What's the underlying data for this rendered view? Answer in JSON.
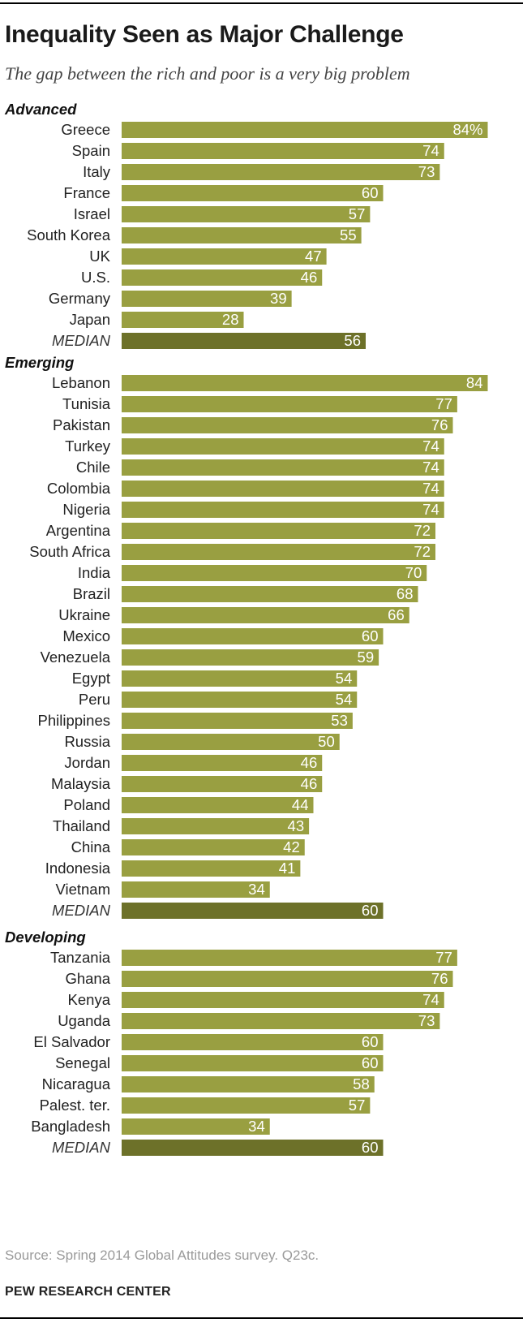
{
  "header": {
    "title": "Inequality Seen as Major Challenge",
    "subtitle": "The gap between the rich and poor is a very big problem"
  },
  "footer": {
    "source": "Source: Spring 2014 Global Attitudes survey. Q23c.",
    "credit": "PEW RESEARCH CENTER"
  },
  "colors": {
    "bar": "#999f41",
    "median_bar": "#6d7129",
    "value_text": "#ffffff"
  },
  "chart_data": {
    "type": "bar",
    "orientation": "horizontal",
    "xlim": [
      0,
      100
    ],
    "value_suffix_first": "%",
    "groups": [
      {
        "name": "Advanced",
        "rows": [
          {
            "label": "Greece",
            "value": 84
          },
          {
            "label": "Spain",
            "value": 74
          },
          {
            "label": "Italy",
            "value": 73
          },
          {
            "label": "France",
            "value": 60
          },
          {
            "label": "Israel",
            "value": 57
          },
          {
            "label": "South Korea",
            "value": 55
          },
          {
            "label": "UK",
            "value": 47
          },
          {
            "label": "U.S.",
            "value": 46
          },
          {
            "label": "Germany",
            "value": 39
          },
          {
            "label": "Japan",
            "value": 28
          },
          {
            "label": "MEDIAN",
            "value": 56,
            "median": true
          }
        ]
      },
      {
        "name": "Emerging",
        "rows": [
          {
            "label": "Lebanon",
            "value": 84
          },
          {
            "label": "Tunisia",
            "value": 77
          },
          {
            "label": "Pakistan",
            "value": 76
          },
          {
            "label": "Turkey",
            "value": 74
          },
          {
            "label": "Chile",
            "value": 74
          },
          {
            "label": "Colombia",
            "value": 74
          },
          {
            "label": "Nigeria",
            "value": 74
          },
          {
            "label": "Argentina",
            "value": 72
          },
          {
            "label": "South Africa",
            "value": 72
          },
          {
            "label": "India",
            "value": 70
          },
          {
            "label": "Brazil",
            "value": 68
          },
          {
            "label": "Ukraine",
            "value": 66
          },
          {
            "label": "Mexico",
            "value": 60
          },
          {
            "label": "Venezuela",
            "value": 59
          },
          {
            "label": "Egypt",
            "value": 54
          },
          {
            "label": "Peru",
            "value": 54
          },
          {
            "label": "Philippines",
            "value": 53
          },
          {
            "label": "Russia",
            "value": 50
          },
          {
            "label": "Jordan",
            "value": 46
          },
          {
            "label": "Malaysia",
            "value": 46
          },
          {
            "label": "Poland",
            "value": 44
          },
          {
            "label": "Thailand",
            "value": 43
          },
          {
            "label": "China",
            "value": 42
          },
          {
            "label": "Indonesia",
            "value": 41
          },
          {
            "label": "Vietnam",
            "value": 34
          },
          {
            "label": "MEDIAN",
            "value": 60,
            "median": true
          }
        ]
      },
      {
        "name": "Developing",
        "rows": [
          {
            "label": "Tanzania",
            "value": 77
          },
          {
            "label": "Ghana",
            "value": 76
          },
          {
            "label": "Kenya",
            "value": 74
          },
          {
            "label": "Uganda",
            "value": 73
          },
          {
            "label": "El Salvador",
            "value": 60
          },
          {
            "label": "Senegal",
            "value": 60
          },
          {
            "label": "Nicaragua",
            "value": 58
          },
          {
            "label": "Palest. ter.",
            "value": 57
          },
          {
            "label": "Bangladesh",
            "value": 34
          },
          {
            "label": "MEDIAN",
            "value": 60,
            "median": true
          }
        ]
      }
    ]
  }
}
